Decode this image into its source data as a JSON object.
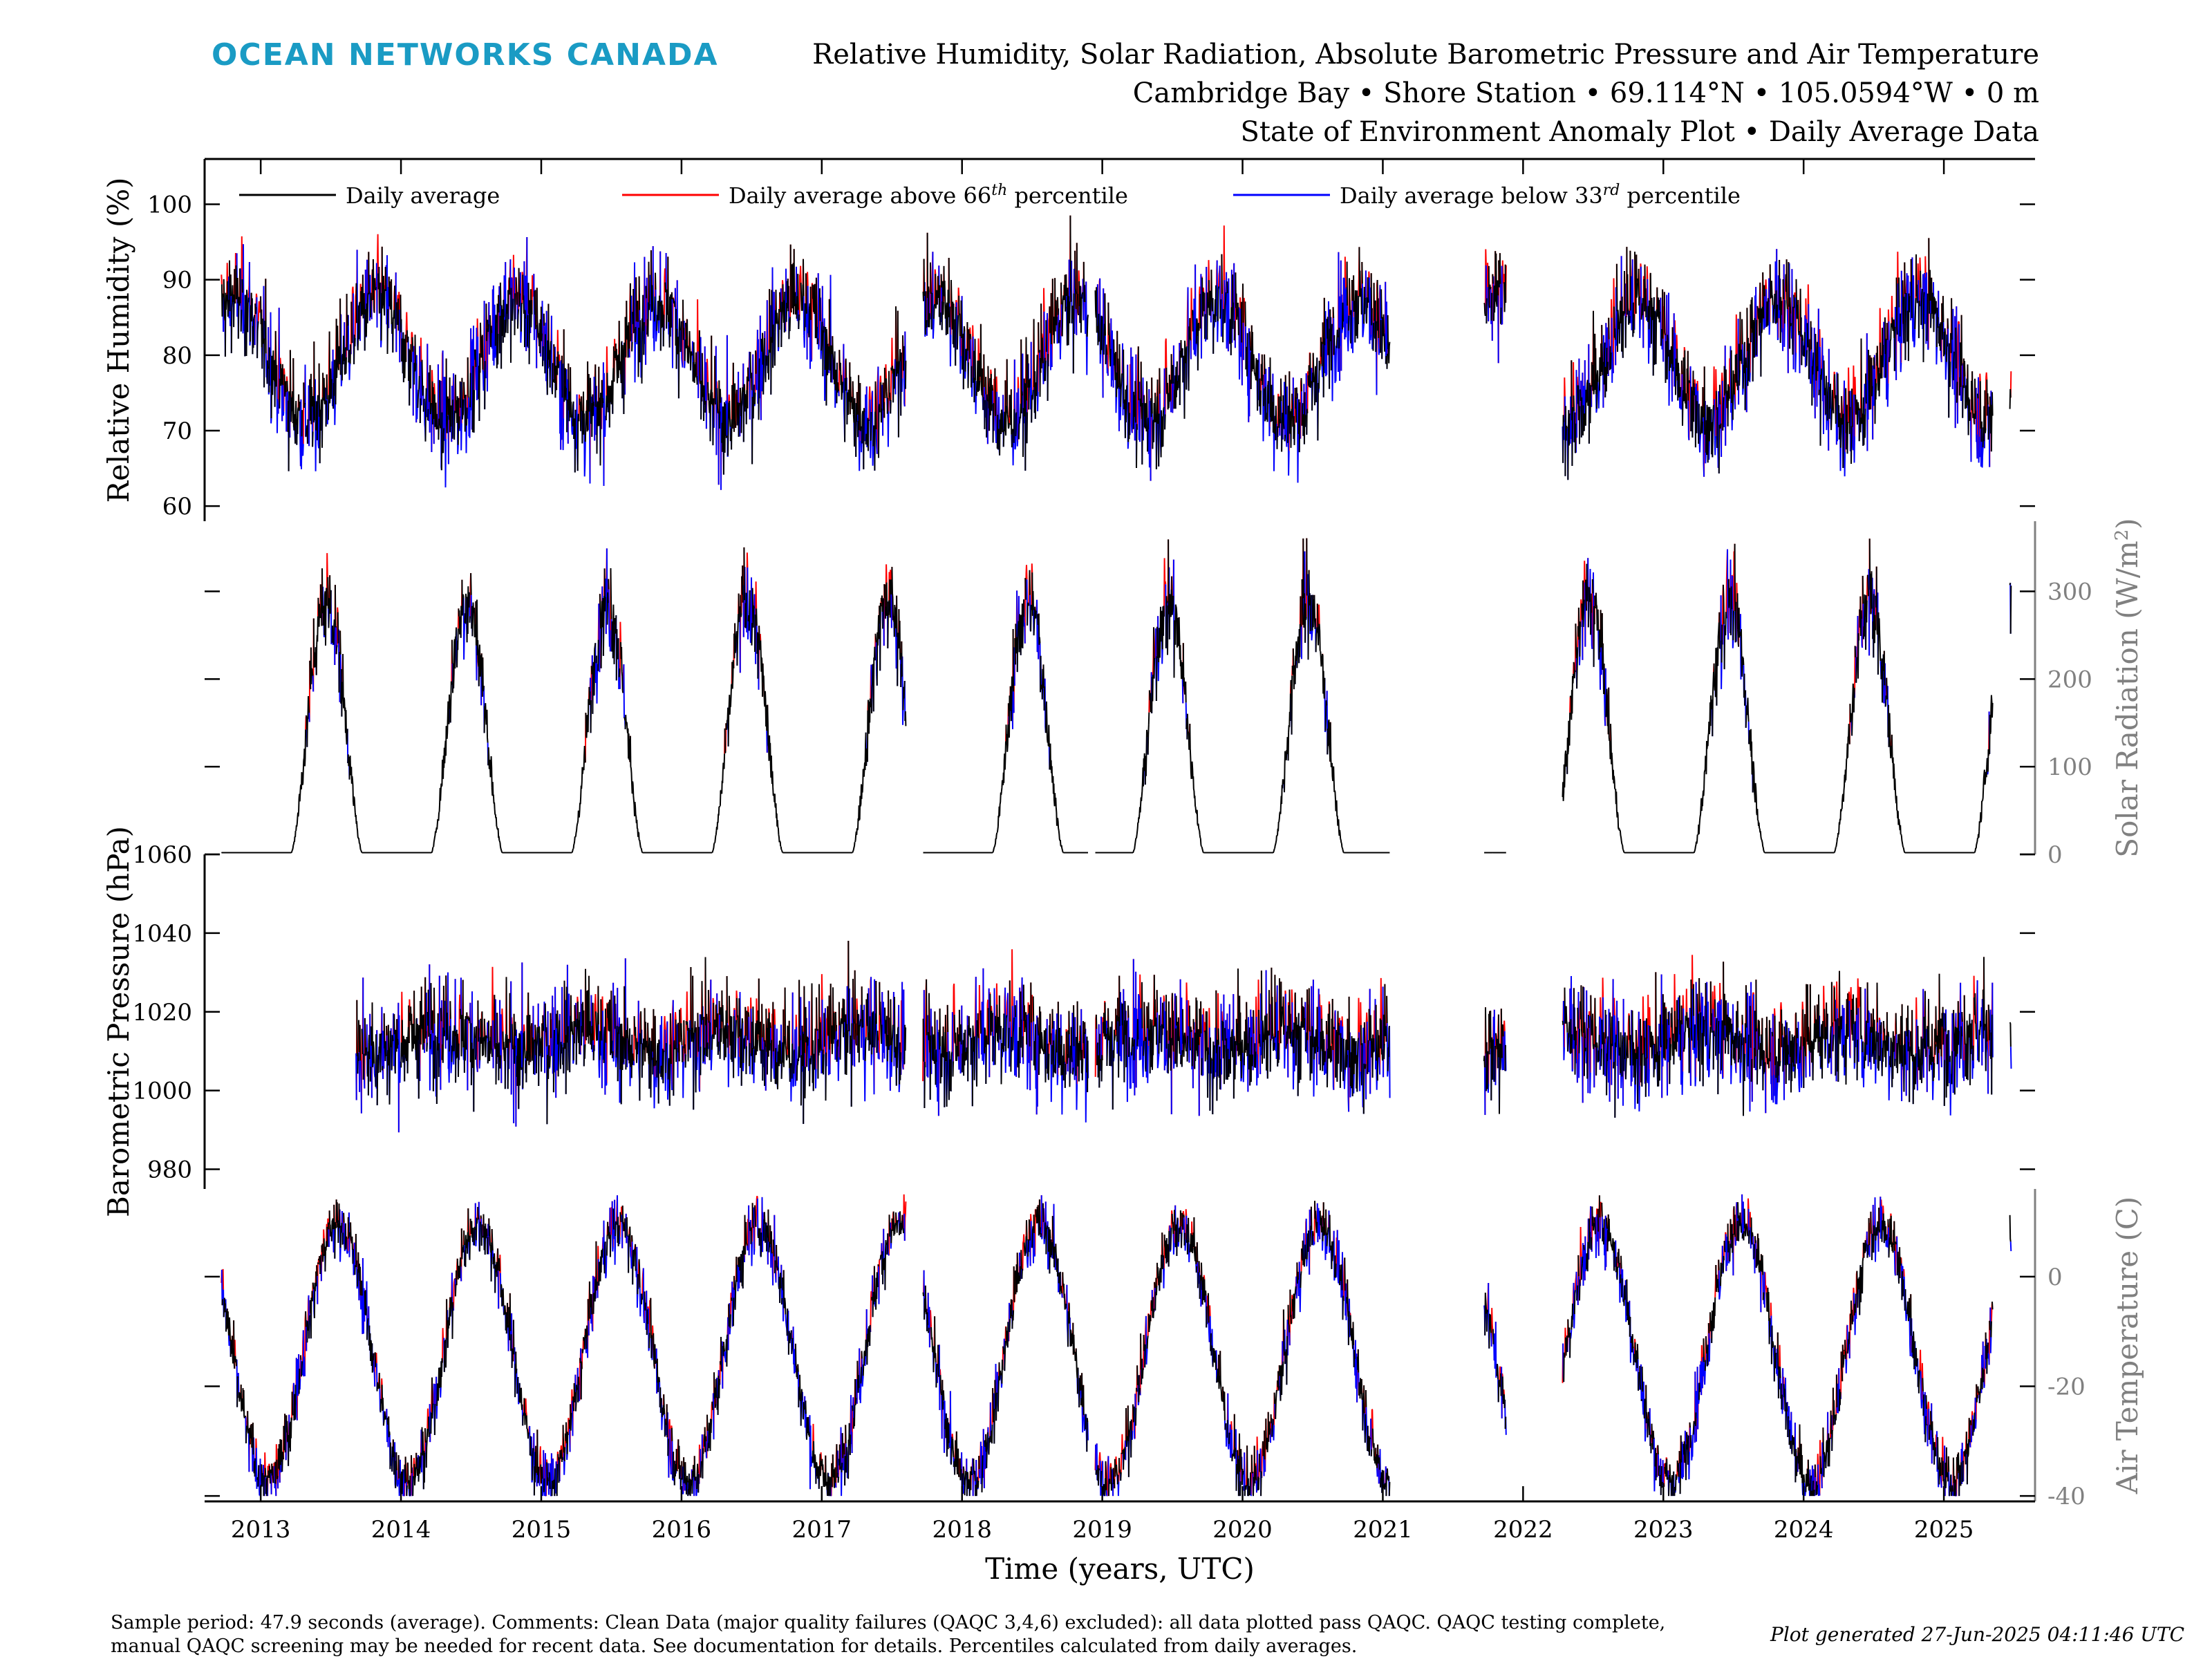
{
  "header": {
    "brand": "OCEAN NETWORKS CANADA",
    "brand_color": "#1a9bc4",
    "title_lines": [
      "Relative Humidity, Solar Radiation, Absolute Barometric Pressure and Air Temperature",
      "Cambridge Bay • Shore Station • 69.114°N • 105.0594°W • 0 m",
      "State of Environment Anomaly Plot • Daily Average Data"
    ]
  },
  "legend": {
    "placement": "top-left",
    "entries": [
      {
        "base": "Daily average",
        "sup": "",
        "tail": "",
        "color": "#000000"
      },
      {
        "base": "Daily average above 66",
        "sup": "th",
        "tail": " percentile",
        "color": "#ff0000"
      },
      {
        "base": "Daily average below 33",
        "sup": "rd",
        "tail": " percentile",
        "color": "#0000ff"
      }
    ]
  },
  "footer": {
    "note_lines": [
      "Sample period: 47.9 seconds (average). Comments: Clean Data (major quality failures (QAQC 3,4,6) excluded): all data plotted pass QAQC. QAQC testing complete,",
      "manual QAQC screening may be needed for recent data. See documentation for details. Percentiles calculated from daily averages."
    ],
    "generated": "Plot generated 27-Jun-2025 04:11:46 UTC"
  },
  "colors": {
    "average": "#000000",
    "above": "#ff0000",
    "below": "#0000ff",
    "right_axis": "#808080"
  },
  "chart_data": {
    "type": "line",
    "x": {
      "label": "Time (years, UTC)",
      "lim": [
        2012.6,
        2025.65
      ],
      "ticks": [
        2013,
        2014,
        2015,
        2016,
        2017,
        2018,
        2019,
        2020,
        2021,
        2022,
        2023,
        2024,
        2025
      ],
      "tick_labels": [
        "2013",
        "2014",
        "2015",
        "2016",
        "2017",
        "2018",
        "2019",
        "2020",
        "2021",
        "2022",
        "2023",
        "2024",
        "2025"
      ]
    },
    "data_gaps": [
      [
        2017.6,
        2017.72
      ],
      [
        2018.9,
        2018.95
      ],
      [
        2021.05,
        2021.72
      ],
      [
        2021.88,
        2022.28
      ],
      [
        2025.35,
        2025.47
      ]
    ],
    "panels": [
      {
        "name": "Relative Humidity",
        "ylabel": "Relative Humidity (%)",
        "axis_side": "left",
        "ylim": [
          58,
          106
        ],
        "ticks": [
          60,
          70,
          80,
          90,
          100
        ],
        "data_start": 2012.72,
        "seasonal": {
          "kind": "rh",
          "mean": 79.5,
          "amplitude": 8,
          "peak": 0.82,
          "noise": 5
        },
        "series": [
          {
            "name": "Daily average",
            "color": "#000000"
          },
          {
            "name": "Daily average above 66th percentile",
            "color": "#ff0000"
          },
          {
            "name": "Daily average below 33rd percentile",
            "color": "#0000ff"
          }
        ]
      },
      {
        "name": "Solar Radiation",
        "ylabel": "Solar Radiation (W/m²)",
        "ylabel_base": "Solar Radiation (W/m",
        "ylabel_sup": "2",
        "ylabel_tail": ")",
        "axis_side": "right",
        "ylim": [
          0,
          380
        ],
        "ticks": [
          0,
          100,
          200,
          300
        ],
        "data_start": 2012.72,
        "seasonal": {
          "kind": "solar",
          "peak_day_fraction": 0.47,
          "peak_value": 290,
          "noise": 45
        },
        "series": [
          {
            "name": "Daily average",
            "color": "#000000"
          },
          {
            "name": "Daily average above 66th percentile",
            "color": "#ff0000"
          },
          {
            "name": "Daily average below 33rd percentile",
            "color": "#0000ff"
          }
        ]
      },
      {
        "name": "Barometric Pressure",
        "ylabel": "Barometric Pressure (hPa)",
        "axis_side": "left",
        "ylim": [
          975,
          1060
        ],
        "ticks": [
          980,
          1000,
          1020,
          1040,
          1060
        ],
        "data_start": 2013.68,
        "seasonal": {
          "kind": "pressure",
          "mean": 1013,
          "amplitude": 3,
          "noise": 10
        },
        "series": [
          {
            "name": "Daily average",
            "color": "#000000"
          },
          {
            "name": "Daily average above 66th percentile",
            "color": "#ff0000"
          },
          {
            "name": "Daily average below 33rd percentile",
            "color": "#0000ff"
          }
        ]
      },
      {
        "name": "Air Temperature",
        "ylabel": "Air Temperature (C)",
        "axis_side": "right",
        "ylim": [
          -41,
          16
        ],
        "ticks": [
          -40,
          -20,
          0
        ],
        "data_start": 2012.72,
        "seasonal": {
          "kind": "temp",
          "mean": -14,
          "amplitude": 23.5,
          "peak": 0.55,
          "noise": 4
        },
        "series": [
          {
            "name": "Daily average",
            "color": "#000000"
          },
          {
            "name": "Daily average above 66th percentile",
            "color": "#ff0000"
          },
          {
            "name": "Daily average below 33rd percentile",
            "color": "#0000ff"
          }
        ]
      }
    ]
  }
}
